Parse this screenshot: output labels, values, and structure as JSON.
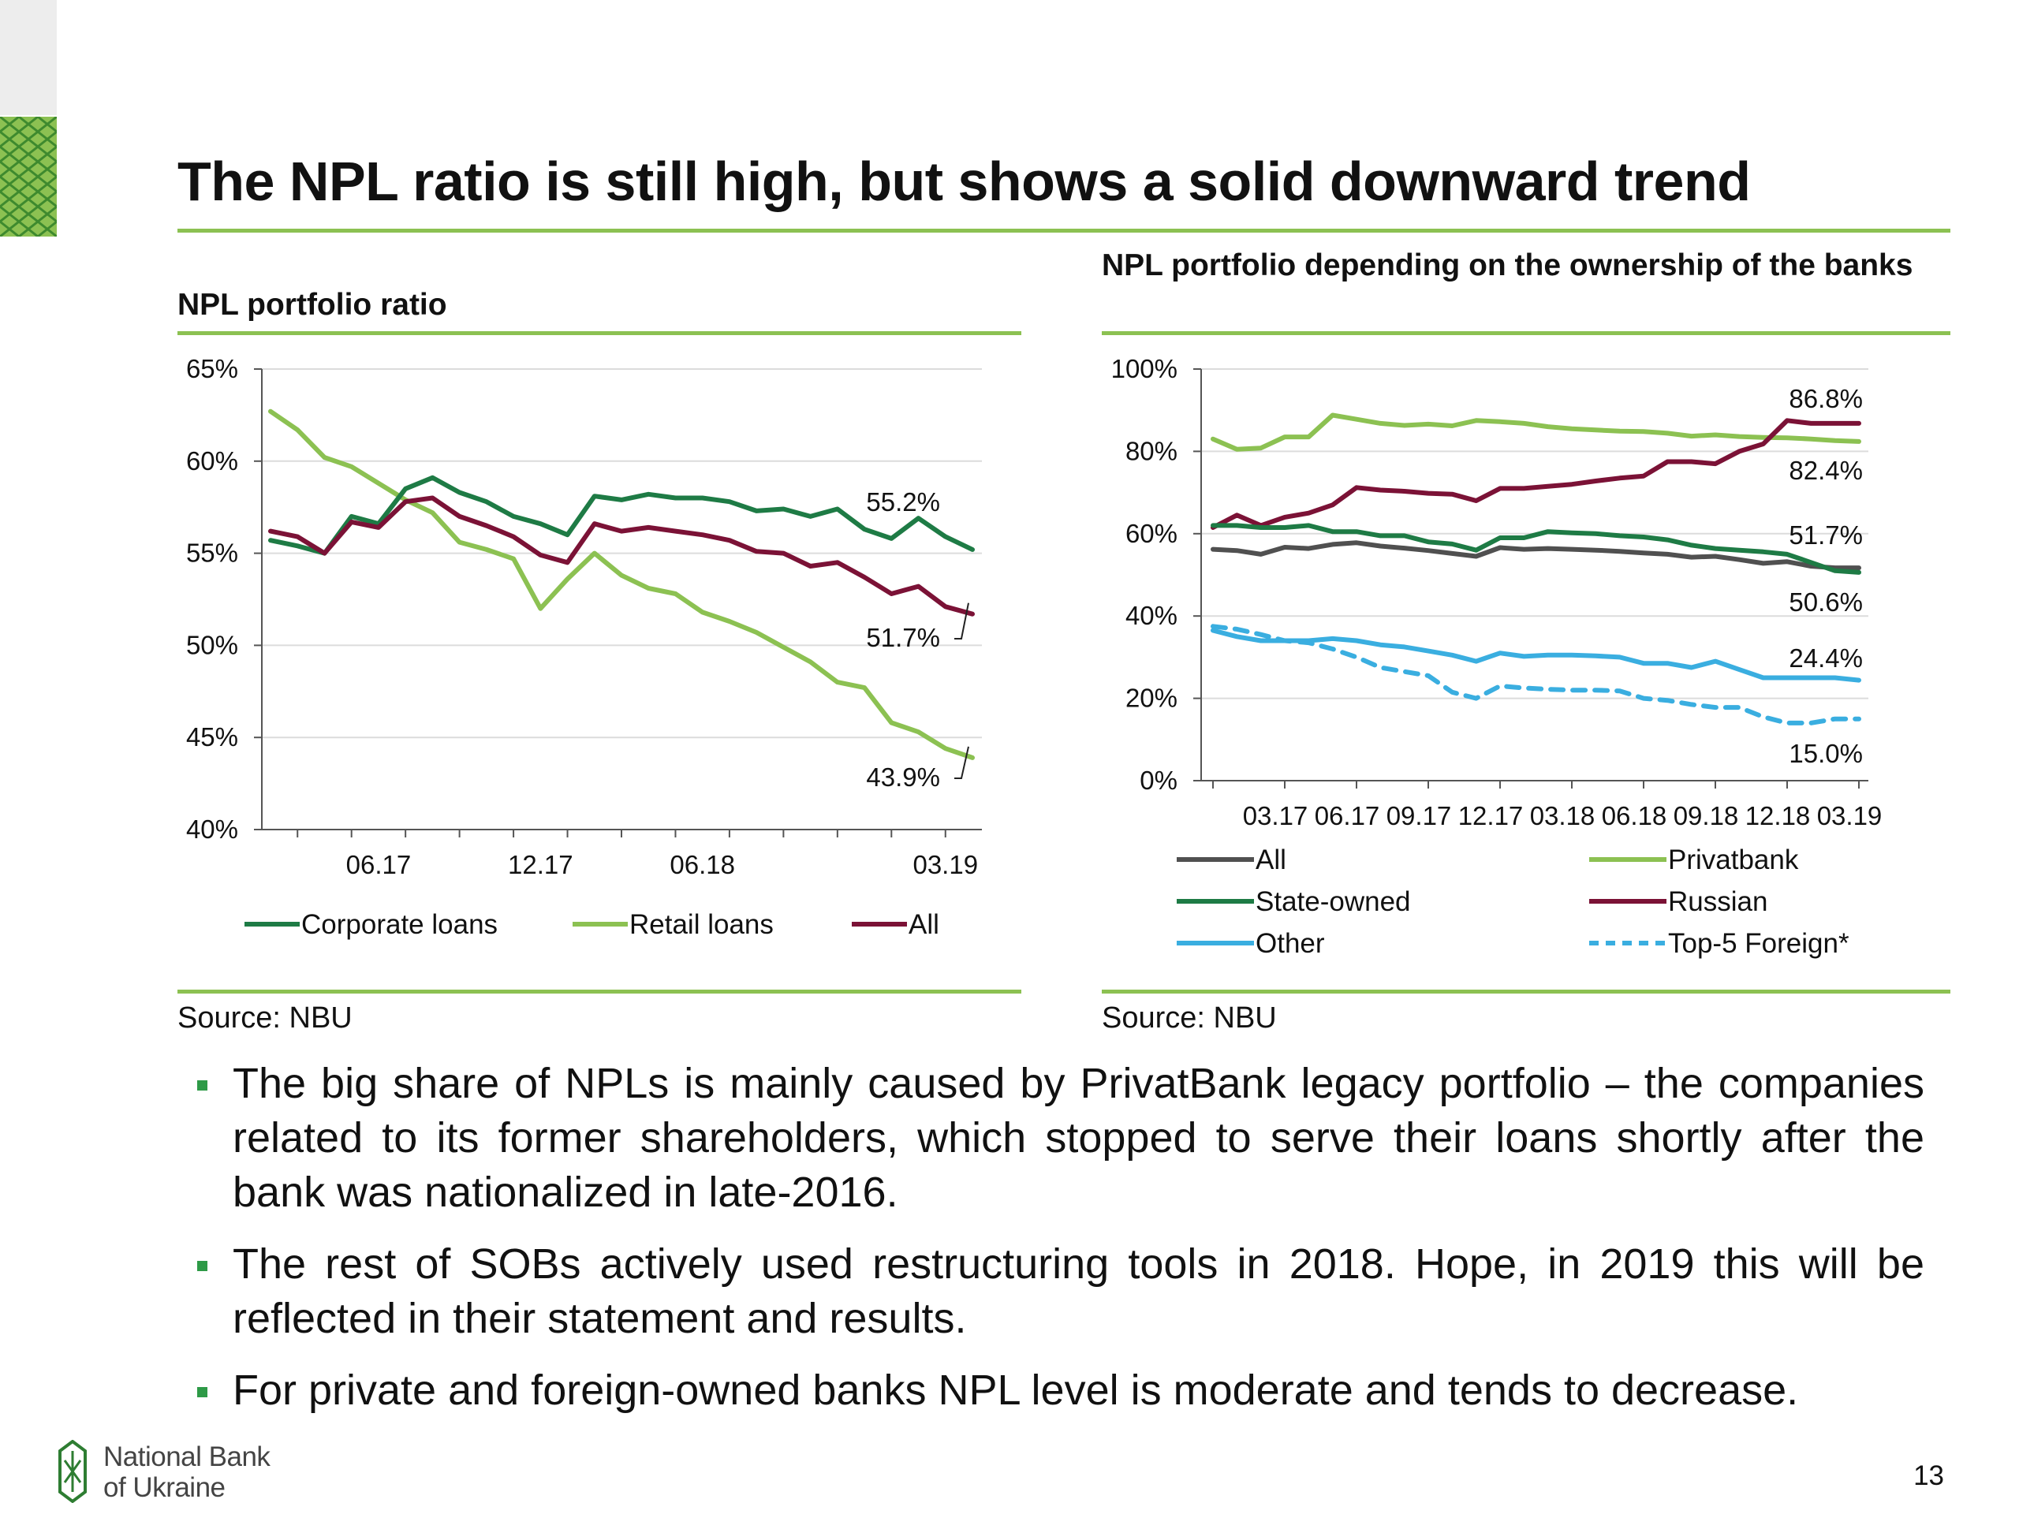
{
  "slide": {
    "title": "The NPL ratio is still high, but shows a solid downward trend",
    "page_number": "13",
    "accent_color": "#8cc152",
    "bullets": [
      "The big share of NPLs is mainly caused by PrivatBank legacy portfolio – the companies related to its former shareholders, which stopped to serve their loans shortly after the bank was nationalized in late-2016.",
      "The rest of SOBs actively used restructuring tools in 2018. Hope, in 2019 this will be reflected in their statement and results.",
      "For private and foreign-owned banks NPL level is moderate and tends to decrease."
    ],
    "footer": {
      "logo_line1": "National Bank",
      "logo_line2": "of Ukraine"
    }
  },
  "left_chart": {
    "title": "NPL portfolio ratio",
    "source": "Source: NBU"
  },
  "right_chart": {
    "title": "NPL portfolio depending on the ownership of the banks",
    "source": "Source: NBU"
  },
  "chart_data": [
    {
      "type": "line",
      "title": "NPL portfolio ratio",
      "ylim": [
        40,
        65
      ],
      "yticks": [
        "40%",
        "45%",
        "50%",
        "55%",
        "60%",
        "65%"
      ],
      "xtick_labels": [
        {
          "index": 4,
          "label": "06.17"
        },
        {
          "index": 10,
          "label": "12.17"
        },
        {
          "index": 16,
          "label": "06.18"
        },
        {
          "index": 25,
          "label": "03.19"
        }
      ],
      "legend_position": "bottom",
      "series": [
        {
          "name": "Corporate loans",
          "color": "#1e7b45",
          "values": [
            55.7,
            55.4,
            55.0,
            57.0,
            56.6,
            58.5,
            59.1,
            58.3,
            57.8,
            57.0,
            56.6,
            56.0,
            58.1,
            57.9,
            58.2,
            58.0,
            58.0,
            57.8,
            57.3,
            57.4,
            57.0,
            57.4,
            56.3,
            55.8,
            56.9,
            55.9,
            55.2
          ],
          "end_label": "55.2%"
        },
        {
          "name": "Retail loans",
          "color": "#8cc152",
          "values": [
            62.7,
            61.7,
            60.2,
            59.7,
            58.8,
            57.9,
            57.2,
            55.6,
            55.2,
            54.7,
            52.0,
            53.6,
            55.0,
            53.8,
            53.1,
            52.8,
            51.8,
            51.3,
            50.7,
            49.9,
            49.1,
            48.0,
            47.7,
            45.8,
            45.3,
            44.4,
            43.9
          ],
          "end_label": "43.9%"
        },
        {
          "name": "All",
          "color": "#7b1236",
          "values": [
            56.2,
            55.9,
            55.0,
            56.7,
            56.4,
            57.8,
            58.0,
            57.0,
            56.5,
            55.9,
            54.9,
            54.5,
            56.6,
            56.2,
            56.4,
            56.2,
            56.0,
            55.7,
            55.1,
            55.0,
            54.3,
            54.5,
            53.7,
            52.8,
            53.2,
            52.1,
            51.7
          ],
          "end_label": "51.7%"
        }
      ]
    },
    {
      "type": "line",
      "title": "NPL portfolio depending on the ownership of the banks",
      "ylim": [
        0,
        100
      ],
      "yticks": [
        "0%",
        "20%",
        "40%",
        "60%",
        "80%",
        "100%"
      ],
      "xtick_labels": [
        {
          "index": 3,
          "label": "03.17"
        },
        {
          "index": 6,
          "label": "06.17"
        },
        {
          "index": 9,
          "label": "09.17"
        },
        {
          "index": 12,
          "label": "12.17"
        },
        {
          "index": 15,
          "label": "03.18"
        },
        {
          "index": 18,
          "label": "06.18"
        },
        {
          "index": 21,
          "label": "09.18"
        },
        {
          "index": 24,
          "label": "12.18"
        },
        {
          "index": 27,
          "label": "03.19"
        }
      ],
      "legend_position": "bottom",
      "series": [
        {
          "name": "All",
          "color": "#505050",
          "dash": false,
          "values": [
            56.2,
            55.9,
            55.0,
            56.7,
            56.4,
            57.4,
            57.8,
            57.0,
            56.5,
            55.9,
            55.2,
            54.5,
            56.6,
            56.2,
            56.4,
            56.2,
            56.0,
            55.7,
            55.3,
            55.0,
            54.3,
            54.5,
            53.7,
            52.8,
            53.2,
            52.1,
            51.7,
            51.7
          ],
          "end_label": "51.7%"
        },
        {
          "name": "Privatbank",
          "color": "#8cc152",
          "dash": false,
          "values": [
            83.0,
            80.5,
            80.8,
            83.5,
            83.5,
            88.8,
            87.8,
            86.8,
            86.3,
            86.6,
            86.2,
            87.5,
            87.2,
            86.8,
            86.0,
            85.5,
            85.2,
            84.9,
            84.8,
            84.4,
            83.7,
            84.0,
            83.6,
            83.4,
            83.3,
            83.0,
            82.6,
            82.4
          ],
          "end_label": "82.4%"
        },
        {
          "name": "State-owned",
          "color": "#1e7b45",
          "dash": false,
          "values": [
            62.0,
            62.0,
            61.5,
            61.5,
            62.0,
            60.5,
            60.5,
            59.5,
            59.5,
            58.0,
            57.5,
            56.0,
            59.0,
            59.0,
            60.5,
            60.2,
            60.0,
            59.5,
            59.2,
            58.5,
            57.2,
            56.4,
            56.0,
            55.6,
            55.0,
            53.0,
            51.0,
            50.6
          ],
          "end_label": "50.6%"
        },
        {
          "name": "Russian",
          "color": "#7b1236",
          "dash": false,
          "values": [
            61.5,
            64.5,
            62.0,
            64.0,
            65.0,
            67.0,
            71.2,
            70.6,
            70.3,
            69.8,
            69.6,
            68.0,
            71.0,
            71.0,
            71.5,
            72.0,
            72.8,
            73.5,
            74.0,
            77.5,
            77.5,
            77.0,
            80.0,
            81.8,
            87.5,
            86.8,
            86.8,
            86.8
          ],
          "end_label": "86.8%"
        },
        {
          "name": "Other",
          "color": "#3aaee0",
          "dash": false,
          "values": [
            36.5,
            35.0,
            34.0,
            34.0,
            34.0,
            34.5,
            34.0,
            33.0,
            32.5,
            31.5,
            30.5,
            29.0,
            31.0,
            30.2,
            30.5,
            30.5,
            30.3,
            30.0,
            28.5,
            28.5,
            27.5,
            29.0,
            27.0,
            25.0,
            25.0,
            25.0,
            25.0,
            24.4
          ],
          "end_label": "24.4%"
        },
        {
          "name": "Top-5 Foreign*",
          "color": "#3aaee0",
          "dash": true,
          "values": [
            37.5,
            36.8,
            35.5,
            34.0,
            33.5,
            32.0,
            30.0,
            27.5,
            26.5,
            25.5,
            21.5,
            20.0,
            23.0,
            22.5,
            22.2,
            22.0,
            22.0,
            21.8,
            20.0,
            19.5,
            18.5,
            17.8,
            17.8,
            15.5,
            14.0,
            14.0,
            15.0,
            15.0
          ],
          "end_label": "15.0%"
        }
      ]
    }
  ]
}
